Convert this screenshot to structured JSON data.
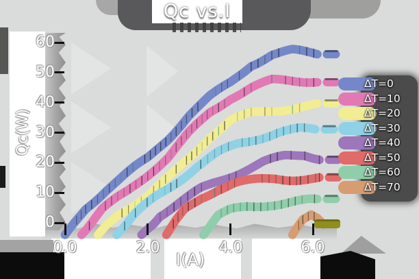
{
  "title": "Qc vs.I",
  "axes": {
    "x_label": "I(A)",
    "y_label": "Qc(W)"
  },
  "chart_data": {
    "type": "line",
    "title": "Qc vs.I",
    "xlabel": "I(A)",
    "ylabel": "Qc(W)",
    "xlim": [
      0,
      6.9
    ],
    "ylim": [
      -5,
      65
    ],
    "grid": false,
    "legend_position": "right",
    "x_ticks": {
      "values": [
        0,
        2,
        4,
        6
      ],
      "labels": [
        "0.0",
        "2.0",
        "4.0",
        "6.0"
      ]
    },
    "y_ticks": {
      "values": [
        0,
        10,
        20,
        30,
        40,
        50,
        60
      ],
      "labels": [
        "0",
        "10",
        "20",
        "30",
        "40",
        "50",
        "60"
      ]
    },
    "series": [
      {
        "name": "ΔT=0",
        "color": "#7487c8",
        "points": [
          [
            0,
            -4
          ],
          [
            0.5,
            5
          ],
          [
            1,
            11
          ],
          [
            1.5,
            16
          ],
          [
            2,
            21
          ],
          [
            2.5,
            28
          ],
          [
            3,
            36
          ],
          [
            3.5,
            42
          ],
          [
            4,
            47
          ],
          [
            4.5,
            53
          ],
          [
            5,
            56
          ],
          [
            5.5,
            57
          ],
          [
            6.1,
            56
          ]
        ]
      },
      {
        "name": "ΔT=10",
        "color": "#e279b5",
        "points": [
          [
            0.4,
            -4
          ],
          [
            0.9,
            4
          ],
          [
            1.5,
            10
          ],
          [
            2,
            16
          ],
          [
            2.5,
            22
          ],
          [
            3,
            30
          ],
          [
            3.5,
            37
          ],
          [
            4,
            42
          ],
          [
            4.5,
            45
          ],
          [
            5,
            47
          ],
          [
            5.5,
            47
          ],
          [
            6.1,
            47
          ]
        ]
      },
      {
        "name": "ΔT=20",
        "color": "#f2ec93",
        "points": [
          [
            0.8,
            -4
          ],
          [
            1.3,
            3
          ],
          [
            2,
            9
          ],
          [
            2.5,
            15
          ],
          [
            3,
            22
          ],
          [
            3.5,
            29
          ],
          [
            4,
            34
          ],
          [
            4.5,
            36
          ],
          [
            5,
            37
          ],
          [
            5.5,
            38
          ],
          [
            6.1,
            39
          ]
        ]
      },
      {
        "name": "ΔT=30",
        "color": "#8fd2e6",
        "points": [
          [
            1.25,
            -4
          ],
          [
            1.7,
            3
          ],
          [
            2.2,
            9
          ],
          [
            2.7,
            14
          ],
          [
            3.2,
            19
          ],
          [
            3.7,
            23
          ],
          [
            4.2,
            26
          ],
          [
            4.7,
            28
          ],
          [
            5.2,
            30
          ],
          [
            5.7,
            31
          ],
          [
            6.05,
            31
          ]
        ]
      },
      {
        "name": "ΔT=40",
        "color": "#9d76bb",
        "points": [
          [
            1.85,
            -4
          ],
          [
            2.3,
            3
          ],
          [
            2.8,
            7
          ],
          [
            3.3,
            11
          ],
          [
            3.8,
            14
          ],
          [
            4.3,
            17
          ],
          [
            4.8,
            20
          ],
          [
            5.3,
            22
          ],
          [
            5.8,
            23
          ],
          [
            6.15,
            22
          ]
        ]
      },
      {
        "name": "ΔT=50",
        "color": "#e16a6a",
        "points": [
          [
            2.45,
            -4
          ],
          [
            2.9,
            4
          ],
          [
            3.3,
            8
          ],
          [
            3.7,
            11
          ],
          [
            4.1,
            13
          ],
          [
            4.6,
            14
          ],
          [
            5.1,
            15
          ],
          [
            5.6,
            15
          ],
          [
            6.15,
            15
          ]
        ]
      },
      {
        "name": "ΔT=60",
        "color": "#8fceaa",
        "points": [
          [
            3.35,
            -4
          ],
          [
            3.7,
            2
          ],
          [
            4,
            4
          ],
          [
            4.4,
            5.5
          ],
          [
            4.9,
            6.5
          ],
          [
            5.4,
            7
          ],
          [
            5.9,
            7.5
          ],
          [
            6.1,
            7.5
          ]
        ]
      },
      {
        "name": "ΔT=70",
        "color": "#d79c72",
        "points": [
          [
            5.5,
            -4
          ],
          [
            5.75,
            1
          ],
          [
            5.95,
            3
          ],
          [
            6.1,
            2
          ],
          [
            6.25,
            0
          ]
        ]
      }
    ]
  },
  "legend": {
    "items": [
      "ΔT=0",
      "ΔT=10",
      "ΔT=20",
      "ΔT=30",
      "ΔT=40",
      "ΔT=50",
      "ΔT=60",
      "ΔT=70"
    ]
  },
  "colors": {
    "background": "#d9dcda",
    "title_blob": "#59595b",
    "legend_shadow": "#4b4b4b",
    "panel": "#ffffff",
    "axis_shadow": "#a7a7a7",
    "black_patch": "#0c0c0c",
    "olive_artifact": "#8f8f1e"
  }
}
